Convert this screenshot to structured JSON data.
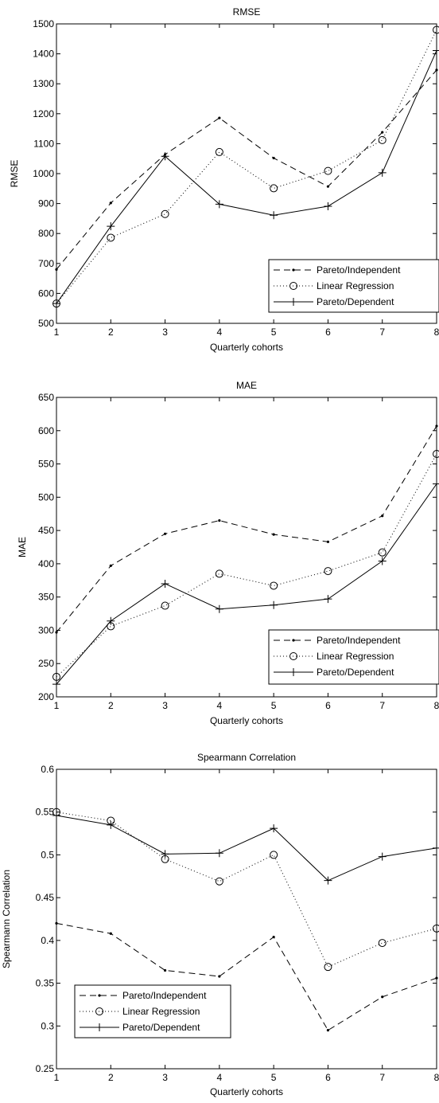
{
  "chart_data": [
    {
      "type": "line",
      "title": "RMSE",
      "xlabel": "Quarterly cohorts",
      "ylabel": "RMSE",
      "xlim": [
        1,
        8
      ],
      "ylim": [
        500,
        1500
      ],
      "xticks": [
        1,
        2,
        3,
        4,
        5,
        6,
        7,
        8
      ],
      "yticks": [
        500,
        600,
        700,
        800,
        900,
        1000,
        1100,
        1200,
        1300,
        1400,
        1500
      ],
      "x": [
        1,
        2,
        3,
        4,
        5,
        6,
        7,
        8
      ],
      "legend_position": "bottom-right",
      "grid": false,
      "series": [
        {
          "name": "Pareto/Independent",
          "style": "dashed",
          "marker": "dot",
          "values": [
            680,
            902,
            1064,
            1186,
            1052,
            957,
            1138,
            1346
          ]
        },
        {
          "name": "Linear Regression",
          "style": "dotted",
          "marker": "circle",
          "values": [
            566,
            786,
            865,
            1072,
            951,
            1009,
            1112,
            1480
          ]
        },
        {
          "name": "Pareto/Dependent",
          "style": "solid",
          "marker": "plus",
          "values": [
            566,
            824,
            1058,
            898,
            861,
            891,
            1003,
            1411
          ]
        }
      ]
    },
    {
      "type": "line",
      "title": "MAE",
      "xlabel": "Quarterly cohorts",
      "ylabel": "MAE",
      "xlim": [
        1,
        8
      ],
      "ylim": [
        200,
        650
      ],
      "xticks": [
        1,
        2,
        3,
        4,
        5,
        6,
        7,
        8
      ],
      "yticks": [
        200,
        250,
        300,
        350,
        400,
        450,
        500,
        550,
        600,
        650
      ],
      "x": [
        1,
        2,
        3,
        4,
        5,
        6,
        7,
        8
      ],
      "legend_position": "bottom-right",
      "grid": false,
      "series": [
        {
          "name": "Pareto/Independent",
          "style": "dashed",
          "marker": "dot",
          "values": [
            297,
            397,
            445,
            465,
            444,
            433,
            472,
            607
          ]
        },
        {
          "name": "Linear Regression",
          "style": "dotted",
          "marker": "circle",
          "values": [
            230,
            306,
            337,
            385,
            367,
            389,
            417,
            565
          ]
        },
        {
          "name": "Pareto/Dependent",
          "style": "solid",
          "marker": "plus",
          "values": [
            219,
            314,
            370,
            332,
            338,
            347,
            404,
            520
          ]
        }
      ]
    },
    {
      "type": "line",
      "title": "Spearmann Correlation",
      "xlabel": "Quarterly cohorts",
      "ylabel": "Spearmann Correlation",
      "xlim": [
        1,
        8
      ],
      "ylim": [
        0.25,
        0.6
      ],
      "xticks": [
        1,
        2,
        3,
        4,
        5,
        6,
        7,
        8
      ],
      "yticks": [
        0.25,
        0.3,
        0.35,
        0.4,
        0.45,
        0.5,
        0.55,
        0.6
      ],
      "x": [
        1,
        2,
        3,
        4,
        5,
        6,
        7,
        8
      ],
      "legend_position": "bottom-left",
      "grid": false,
      "series": [
        {
          "name": "Pareto/Independent",
          "style": "dashed",
          "marker": "dot",
          "values": [
            0.42,
            0.408,
            0.365,
            0.358,
            0.404,
            0.295,
            0.334,
            0.356
          ]
        },
        {
          "name": "Linear Regression",
          "style": "dotted",
          "marker": "circle",
          "values": [
            0.55,
            0.54,
            0.495,
            0.469,
            0.5,
            0.369,
            0.397,
            0.414
          ]
        },
        {
          "name": "Pareto/Dependent",
          "style": "solid",
          "marker": "plus",
          "values": [
            0.546,
            0.535,
            0.501,
            0.502,
            0.531,
            0.47,
            0.498,
            0.508
          ]
        }
      ]
    }
  ]
}
